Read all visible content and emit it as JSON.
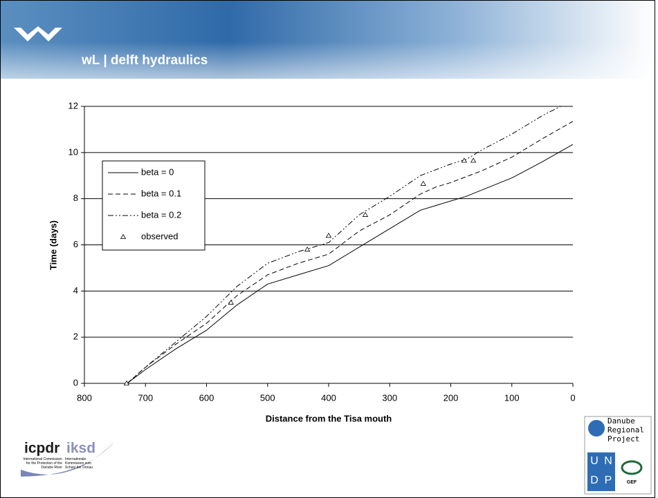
{
  "header": {
    "brand": "wL | delft hydraulics"
  },
  "logos": {
    "icpdr": "icpdr",
    "iksd": "iksd",
    "icpdr_text": "International Commission for the Protection of the Danube River",
    "iksd_text": "Internationale Kommission zum Schutz der Donau",
    "drp_1": "Danube",
    "drp_2": "Regional",
    "drp_3": "Project",
    "undp": [
      "U",
      "N",
      "D",
      "P"
    ],
    "gef": "GEF"
  },
  "chart_data": {
    "type": "line",
    "xlabel": "Distance from the Tisa mouth",
    "ylabel": "Time (days)",
    "xlim": [
      800,
      0
    ],
    "xticks": [
      800,
      700,
      600,
      500,
      400,
      300,
      200,
      100,
      0
    ],
    "ylim": [
      0,
      12
    ],
    "yticks": [
      0,
      2,
      4,
      6,
      8,
      10,
      12
    ],
    "grid": true,
    "legend": "upper left",
    "series": [
      {
        "name": "beta = 0",
        "color": "#000000",
        "dash": "solid",
        "x": [
          730,
          700,
          650,
          600,
          550,
          500,
          450,
          400,
          350,
          300,
          250,
          200,
          175,
          100,
          50,
          0
        ],
        "values": [
          0,
          0.6,
          1.5,
          2.3,
          3.4,
          4.3,
          4.7,
          5.1,
          5.9,
          6.7,
          7.5,
          7.9,
          8.1,
          8.9,
          9.6,
          10.35
        ]
      },
      {
        "name": "beta = 0.1",
        "color": "#000000",
        "dash": "dashed",
        "x": [
          730,
          700,
          650,
          600,
          550,
          500,
          450,
          400,
          350,
          300,
          250,
          225,
          200,
          150,
          100,
          50,
          0
        ],
        "values": [
          0,
          0.7,
          1.7,
          2.6,
          3.8,
          4.7,
          5.2,
          5.6,
          6.6,
          7.3,
          8.2,
          8.5,
          8.7,
          9.2,
          9.8,
          10.6,
          11.35
        ]
      },
      {
        "name": "beta = 0.2",
        "color": "#000000",
        "dash": "dashdot",
        "x": [
          730,
          700,
          650,
          600,
          550,
          500,
          450,
          400,
          350,
          300,
          250,
          200,
          175,
          150,
          100,
          50,
          20
        ],
        "values": [
          0,
          0.7,
          1.8,
          2.9,
          4.2,
          5.2,
          5.7,
          6.1,
          7.3,
          8.1,
          9.0,
          9.5,
          9.7,
          10.1,
          10.8,
          11.6,
          12
        ]
      },
      {
        "name": "observed",
        "color": "#000000",
        "marker": "triangle",
        "x": [
          731,
          560,
          435,
          400,
          340,
          245,
          178,
          163
        ],
        "values": [
          0,
          3.5,
          5.8,
          6.4,
          7.3,
          8.65,
          9.65,
          9.65
        ]
      }
    ]
  }
}
